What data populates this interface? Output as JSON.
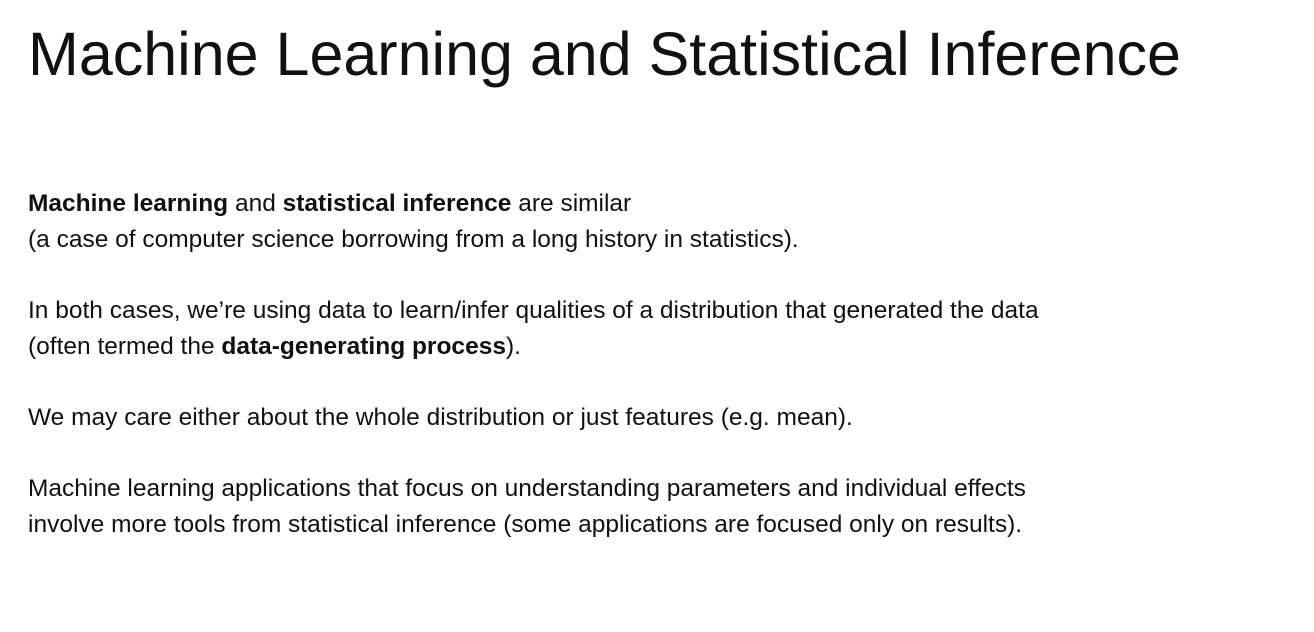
{
  "slide": {
    "title": "Machine Learning and Statistical Inference",
    "paragraphs": [
      {
        "line1": {
          "bold_a": "Machine learning",
          "text_a": " and ",
          "bold_b": "statistical inference",
          "text_b": " are similar"
        },
        "line2": "(a case of computer science borrowing from a long history in statistics)."
      },
      {
        "line1": "In both cases, we’re using data to learn/infer qualities of a distribution that generated the data",
        "line2": {
          "text_a": "(often termed the ",
          "bold_a": "data-generating process",
          "text_b": ")."
        }
      },
      {
        "line1": "We may care either about the whole distribution or just features (e.g. mean)."
      },
      {
        "line1": "Machine learning applications that focus on understanding parameters and individual effects",
        "line2": "involve more tools from statistical inference (some applications are focused only on results)."
      }
    ]
  }
}
